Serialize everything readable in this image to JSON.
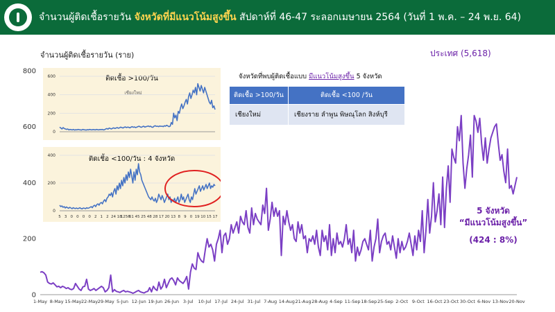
{
  "header": {
    "title_part1": "จำนวนผู้ติดเชื้อรายวัน ",
    "title_highlight": "จังหวัดที่มีแนวโน้มสูงขึ้น",
    "title_part2": " สัปดาห์ที่ 46-47 ระลอกเมษายน 2564 (วันที่ 1 พ.ค. – 24 พ.ย. 64)"
  },
  "colors": {
    "header_bg": "#0b6b3a",
    "main_line": "#7b3fc4",
    "inset_line": "#4472c4",
    "highlight_circle": "#e02020",
    "annotation": "#6b21a8"
  },
  "chart_data": [
    {
      "type": "line",
      "ylabel": "จำนวนผู้ติดเชื้อรายวัน (ราย)",
      "legend": "ประเทศ (5,618)",
      "ylim": [
        0,
        800
      ],
      "yticks": [
        0,
        200,
        400,
        600,
        800
      ],
      "xtick_labels": [
        "1-May",
        "8-May",
        "15-May",
        "22-May",
        "29-May",
        "5-Jun",
        "12-Jun",
        "19-Jun",
        "26-Jun",
        "3-Jul",
        "10-Jul",
        "17-Jul",
        "24-Jul",
        "31-Jul",
        "7-Aug",
        "14-Aug",
        "21-Aug",
        "28-Aug",
        "4-Sep",
        "11-Sep",
        "18-Sep",
        "25-Sep",
        "2-Oct",
        "9-Oct",
        "16-Oct",
        "23-Oct",
        "30-Oct",
        "6-Nov",
        "13-Nov",
        "20-Nov"
      ],
      "series": [
        {
          "values": [
            80,
            82,
            78,
            70,
            45,
            40,
            38,
            42,
            35,
            28,
            30,
            25,
            30,
            27,
            22,
            25,
            20,
            18,
            22,
            40,
            30,
            20,
            15,
            28,
            30,
            55,
            20,
            15,
            18,
            22,
            15,
            20,
            25,
            30,
            25,
            10,
            15,
            25,
            70,
            10,
            18,
            12,
            10,
            8,
            12,
            15,
            10,
            12,
            10,
            8,
            5,
            8,
            12,
            15,
            10,
            8,
            6,
            10,
            12,
            25,
            10,
            30,
            20,
            15,
            45,
            20,
            30,
            55,
            25,
            40,
            55,
            60,
            50,
            35,
            60,
            50,
            45,
            40,
            50,
            65,
            20,
            80,
            110,
            95,
            90,
            150,
            130,
            120,
            115,
            160,
            200,
            170,
            180,
            160,
            120,
            180,
            200,
            230,
            150,
            210,
            220,
            180,
            200,
            250,
            220,
            240,
            260,
            220,
            280,
            260,
            250,
            300,
            240,
            220,
            310,
            250,
            290,
            270,
            260,
            250,
            320,
            290,
            380,
            230,
            270,
            330,
            280,
            310,
            280,
            300,
            140,
            280,
            250,
            300,
            260,
            230,
            250,
            200,
            190,
            260,
            220,
            250,
            200,
            210,
            150,
            200,
            190,
            210,
            180,
            230,
            170,
            140,
            230,
            190,
            210,
            160,
            250,
            140,
            200,
            150,
            220,
            180,
            190,
            170,
            200,
            250,
            180,
            200,
            150,
            230,
            120,
            170,
            140,
            160,
            190,
            200,
            180,
            160,
            230,
            120,
            170,
            200,
            270,
            150,
            190,
            210,
            220,
            180,
            190,
            160,
            210,
            170,
            130,
            200,
            150,
            190,
            160,
            170,
            190,
            220,
            180,
            140,
            210,
            160,
            230,
            190,
            300,
            150,
            230,
            340,
            220,
            280,
            400,
            260,
            300,
            360,
            250,
            420,
            240,
            380,
            460,
            330,
            520,
            490,
            470,
            600,
            550,
            640,
            470,
            380,
            450,
            500,
            570,
            420,
            640,
            620,
            580,
            630,
            540,
            480,
            560,
            470,
            520,
            560,
            580,
            600,
            610,
            540,
            480,
            500,
            440,
            400,
            520,
            380,
            390,
            360,
            390,
            420
          ]
        }
      ],
      "annotation": {
        "line1": "5 จังหวัด",
        "line2": "“มีแนวโน้มสูงขึ้น”",
        "line3": "(424 : 8%)"
      }
    },
    {
      "type": "line",
      "title": "ติดเชื้อ >100/วัน",
      "inner_label": "เชียงใหม่",
      "ylim": [
        0,
        600
      ],
      "yticks": [
        0,
        200,
        400,
        600
      ],
      "series": [
        {
          "values": [
            50,
            40,
            30,
            45,
            35,
            30,
            25,
            30,
            20,
            25,
            22,
            20,
            25,
            18,
            22,
            20,
            25,
            22,
            20,
            18,
            25,
            22,
            20,
            18,
            22,
            20,
            25,
            22,
            20,
            24,
            22,
            20,
            25,
            22,
            20,
            24,
            22,
            25,
            20,
            22,
            30,
            35,
            28,
            40,
            35,
            30,
            38,
            42,
            35,
            40,
            45,
            38,
            42,
            50,
            45,
            40,
            48,
            52,
            45,
            50,
            48,
            42,
            50,
            55,
            48,
            52,
            45,
            50,
            55,
            60,
            52,
            48,
            55,
            60,
            50,
            55,
            58,
            62,
            55,
            60,
            50,
            48,
            60,
            65,
            58,
            60,
            55,
            62,
            58,
            60,
            55,
            65,
            60,
            70,
            62,
            55,
            60,
            100,
            80,
            200,
            150,
            180,
            120,
            220,
            200,
            260,
            300,
            250,
            280,
            320,
            350,
            300,
            380,
            420,
            360,
            400,
            450,
            420,
            480,
            400,
            520,
            480,
            440,
            500,
            460,
            420,
            480,
            440,
            400,
            360,
            320,
            300,
            340,
            260,
            280,
            240
          ]
        }
      ]
    },
    {
      "type": "line",
      "title": "ติดเชื้อ <100/วัน : 4 จังหวัด",
      "ylim": [
        0,
        400
      ],
      "yticks": [
        0,
        200,
        400
      ],
      "xtick_labels": [
        "5",
        "3",
        "0",
        "0",
        "0",
        "0",
        "2",
        "1",
        "2",
        "24",
        "18",
        "1256",
        "61",
        "45",
        "25",
        "48",
        "28",
        "17",
        "20",
        "13",
        "8",
        "9",
        "0",
        "19",
        "10",
        "15",
        "17"
      ],
      "series": [
        {
          "values": [
            40,
            30,
            35,
            25,
            30,
            20,
            28,
            22,
            18,
            25,
            20,
            15,
            22,
            18,
            16,
            20,
            15,
            18,
            22,
            16,
            14,
            20,
            18,
            15,
            22,
            18,
            20,
            25,
            30,
            22,
            35,
            40,
            30,
            45,
            50,
            40,
            55,
            60,
            50,
            70,
            80,
            65,
            90,
            100,
            120,
            110,
            130,
            100,
            140,
            160,
            120,
            180,
            150,
            200,
            160,
            220,
            180,
            240,
            200,
            260,
            220,
            280,
            240,
            300,
            250,
            200,
            280,
            220,
            300,
            260,
            340,
            280,
            260,
            220,
            200,
            180,
            160,
            140,
            120,
            100,
            90,
            80,
            100,
            80,
            70,
            90,
            60,
            80,
            120,
            100,
            80,
            110,
            90,
            60,
            80,
            100,
            120,
            80,
            100,
            60,
            80,
            70,
            90,
            60,
            80,
            100,
            60,
            80,
            120,
            80,
            100,
            60,
            80,
            100,
            120,
            80,
            60,
            100,
            80,
            120,
            160,
            120,
            140,
            160,
            180,
            140,
            160,
            180,
            150,
            170,
            190,
            160,
            180,
            200,
            160,
            180,
            170,
            190,
            180
          ]
        }
      ]
    }
  ],
  "province_box": {
    "title_part1": "จังหวัดที่พบผู้ติดเชื้อแบบ ",
    "title_highlight": "มีแนวโน้มสูงขึ้น",
    "title_part2": " 5 จังหวัด",
    "col1_header": "ติดเชื้อ >100/วัน",
    "col2_header": "ติดเชื้อ <100 /วัน",
    "col1_value": "เชียงใหม่",
    "col2_value": "เชียงราย ลำพูน พิษณุโลก สิงห์บุรี"
  }
}
